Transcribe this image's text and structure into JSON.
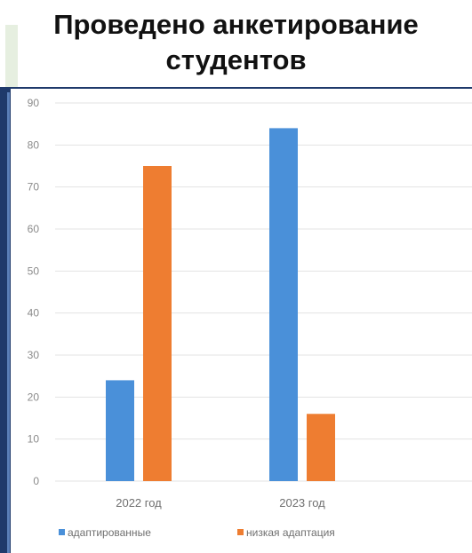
{
  "title": "Проведено анкетирование студентов",
  "title_lines": [
    "Проведено анкетирование",
    "студентов"
  ],
  "colors": {
    "series1": "#4a90d9",
    "series2": "#ee7d31",
    "grid": "#e3e3e3",
    "frame": "#1f3a6b"
  },
  "chart_data": {
    "type": "bar",
    "title": "Проведено анкетирование студентов",
    "categories": [
      "2022 год",
      "2023 год"
    ],
    "series": [
      {
        "name": "адаптированные",
        "values": [
          24,
          84
        ]
      },
      {
        "name": "низкая адаптация",
        "values": [
          75,
          16
        ]
      }
    ],
    "ylim": [
      0,
      90
    ],
    "yticks": [
      0,
      10,
      20,
      30,
      40,
      50,
      60,
      70,
      80,
      90
    ],
    "grid": true,
    "legend": "bottom"
  }
}
